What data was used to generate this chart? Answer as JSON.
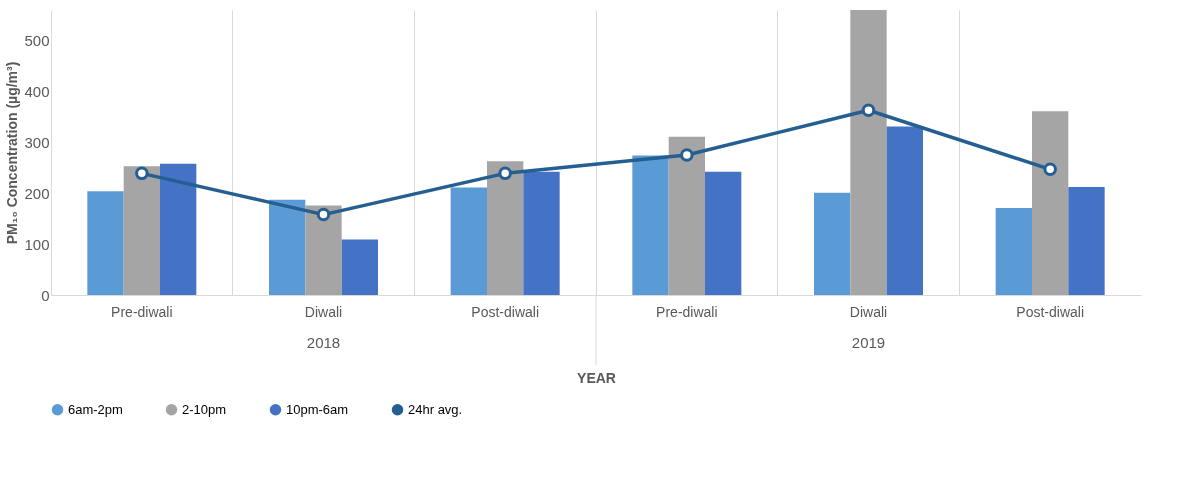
{
  "chart_data": {
    "type": "bar",
    "ylabel": "PM₁₀ Concentration (µg/m³)",
    "xlabel": "YEAR",
    "categories": [
      "Pre-diwali",
      "Diwali",
      "Post-diwali",
      "Pre-diwali",
      "Diwali",
      "Post-diwali"
    ],
    "annotations": [
      "2018",
      "2019"
    ],
    "series": [
      {
        "name": "6am-2pm",
        "color": "#5b9bd5",
        "values": [
          204,
          187,
          211,
          274,
          201,
          171
        ]
      },
      {
        "name": "2-10pm",
        "color": "#a5a5a5",
        "values": [
          253,
          176,
          263,
          311,
          560,
          361
        ]
      },
      {
        "name": "10pm-6am",
        "color": "#4472c4",
        "values": [
          258,
          109,
          242,
          242,
          331,
          212
        ]
      },
      {
        "name": "24hr avg.",
        "color": "#255e91",
        "type": "line",
        "marker": "circle",
        "values": [
          239,
          158,
          239,
          275,
          363,
          247
        ]
      }
    ],
    "ylim": [
      0,
      560
    ],
    "yticks": [
      0,
      100,
      200,
      300,
      400,
      500
    ],
    "grid": "x",
    "legend": "bottom"
  }
}
